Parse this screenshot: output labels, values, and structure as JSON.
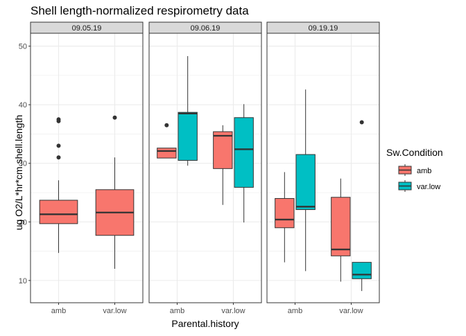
{
  "chart_data": {
    "type": "boxplot",
    "title": "Shell length-normalized respirometry data",
    "xlabel": "Parental.history",
    "ylabel": "ug O2/L*hr*cm.shell.length",
    "ylim": [
      6.2,
      52.2
    ],
    "yticks": [
      10,
      20,
      30,
      40,
      50
    ],
    "grid": true,
    "categories": [
      "amb",
      "var.low"
    ],
    "facets": [
      {
        "label": "09.05.19",
        "boxes": [
          {
            "x": "amb",
            "group": "amb",
            "min": 14.7,
            "q1": 19.7,
            "median": 21.3,
            "q3": 23.7,
            "max": 27.1,
            "outliers": [
              31.0,
              33.0,
              37.2,
              37.5
            ]
          },
          {
            "x": "var.low",
            "group": "amb",
            "min": 12.0,
            "q1": 17.7,
            "median": 21.6,
            "q3": 25.5,
            "max": 31.0,
            "outliers": [
              37.8
            ]
          }
        ]
      },
      {
        "label": "09.06.19",
        "boxes": [
          {
            "x": "amb",
            "group": "amb",
            "min": 30.9,
            "q1": 30.9,
            "median": 32.1,
            "q3": 32.6,
            "max": 32.6,
            "outliers": [
              36.5
            ]
          },
          {
            "x": "amb",
            "group": "var.low",
            "min": 29.6,
            "q1": 30.5,
            "median": 38.5,
            "q3": 38.7,
            "max": 48.3,
            "outliers": []
          },
          {
            "x": "var.low",
            "group": "amb",
            "min": 22.9,
            "q1": 29.1,
            "median": 34.7,
            "q3": 35.4,
            "max": 36.5,
            "outliers": []
          },
          {
            "x": "var.low",
            "group": "var.low",
            "min": 19.9,
            "q1": 25.9,
            "median": 32.4,
            "q3": 37.8,
            "max": 40.1,
            "outliers": []
          }
        ]
      },
      {
        "label": "09.19.19",
        "boxes": [
          {
            "x": "amb",
            "group": "amb",
            "min": 13.1,
            "q1": 19.0,
            "median": 20.4,
            "q3": 24.0,
            "max": 28.5,
            "outliers": []
          },
          {
            "x": "amb",
            "group": "var.low",
            "min": 11.6,
            "q1": 22.1,
            "median": 22.6,
            "q3": 31.5,
            "max": 42.6,
            "outliers": []
          },
          {
            "x": "var.low",
            "group": "amb",
            "min": 9.8,
            "q1": 14.2,
            "median": 15.3,
            "q3": 24.2,
            "max": 27.4,
            "outliers": []
          },
          {
            "x": "var.low",
            "group": "var.low",
            "min": 8.2,
            "q1": 10.3,
            "median": 11.0,
            "q3": 13.1,
            "max": 13.1,
            "outliers": [
              37.0
            ]
          }
        ]
      }
    ],
    "legend": {
      "title": "Sw.Condition",
      "position": "right",
      "items": [
        {
          "label": "amb",
          "color": "#F8766D"
        },
        {
          "label": "var.low",
          "color": "#00BFC4"
        }
      ]
    }
  }
}
